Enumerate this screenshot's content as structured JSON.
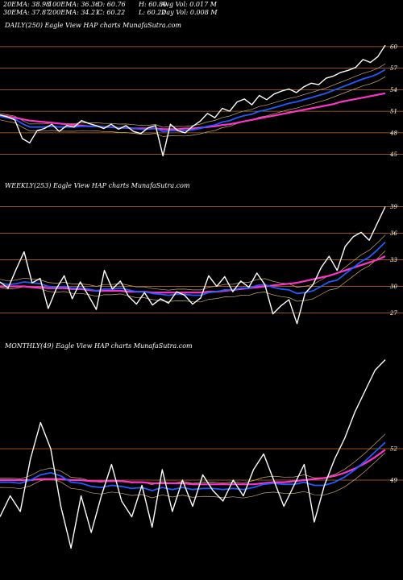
{
  "header": {
    "ema20": "20EMA: 38.98",
    "ema100": "100EMA: 36.36",
    "open": "O: 60.76",
    "high": "H: 60.80",
    "avg_vol": "Avg Vol: 0.017 M",
    "ema30": "30EMA: 37.87",
    "ema200": "200EMA: 34.21",
    "close": "C: 60.22",
    "low": "L: 60.22",
    "day_vol": "Day Vol: 0.008 M"
  },
  "colors": {
    "background": "#000000",
    "gridline": "#c8701e",
    "price": "#ffffff",
    "ema_fast": "#1f5bff",
    "ema_slow": "#ff33cc",
    "ema_mid": "#c8a878"
  },
  "chart_data": [
    {
      "type": "line",
      "title": "DAILY(250) Eagle  View  HAP charts MunafaSutra.com",
      "yticks": [
        60,
        57,
        54,
        51,
        48,
        45
      ],
      "ylim": [
        43.5,
        62
      ],
      "series": [
        {
          "values": [
            50.5,
            50.2,
            49.8,
            47.2,
            46.6,
            48.3,
            48.6,
            49.2,
            48.2,
            49.0,
            48.8,
            49.7,
            49.3,
            49.0,
            48.6,
            49.2,
            48.5,
            49.0,
            48.2,
            47.9,
            48.7,
            49.0,
            44.8,
            49.2,
            48.3,
            48.0,
            48.9,
            49.6,
            50.7,
            50.1,
            51.4,
            51.0,
            52.3,
            52.7,
            51.9,
            53.2,
            52.6,
            53.4,
            53.8,
            54.1,
            53.6,
            54.4,
            54.9,
            54.7,
            55.6,
            55.9,
            56.4,
            56.7,
            57.1,
            58.2,
            57.8,
            58.6,
            60.2
          ]
        },
        {
          "values": [
            50.3,
            50.1,
            49.9,
            49.3,
            48.8,
            48.8,
            48.8,
            48.9,
            48.8,
            48.8,
            48.8,
            48.9,
            48.9,
            48.9,
            48.8,
            48.8,
            48.7,
            48.7,
            48.6,
            48.5,
            48.5,
            48.6,
            48.2,
            48.3,
            48.3,
            48.3,
            48.4,
            48.6,
            48.9,
            49.1,
            49.5,
            49.7,
            50.1,
            50.4,
            50.6,
            51.0,
            51.2,
            51.5,
            51.8,
            52.1,
            52.3,
            52.6,
            52.9,
            53.2,
            53.5,
            53.9,
            54.3,
            54.7,
            55.1,
            55.5,
            55.8,
            56.2,
            56.8
          ]
        },
        {
          "values": [
            50.4,
            50.3,
            50.1,
            49.9,
            49.7,
            49.6,
            49.5,
            49.4,
            49.3,
            49.2,
            49.1,
            49.0,
            48.9,
            48.9,
            48.8,
            48.8,
            48.7,
            48.7,
            48.6,
            48.6,
            48.6,
            48.6,
            48.5,
            48.5,
            48.5,
            48.6,
            48.6,
            48.7,
            48.8,
            48.9,
            49.1,
            49.2,
            49.4,
            49.6,
            49.8,
            50.0,
            50.2,
            50.4,
            50.6,
            50.8,
            51.0,
            51.2,
            51.4,
            51.6,
            51.8,
            52.0,
            52.3,
            52.5,
            52.7,
            52.9,
            53.1,
            53.3,
            53.5
          ]
        }
      ]
    },
    {
      "type": "line",
      "title": "WEEKLY(253) Eagle  View  HAP charts MunafaSutra.com",
      "yticks": [
        39,
        36,
        33,
        30,
        27
      ],
      "ylim": [
        25.5,
        40.5
      ],
      "series": [
        {
          "values": [
            30.5,
            29.8,
            31.9,
            33.9,
            30.4,
            30.9,
            27.5,
            29.7,
            31.2,
            28.6,
            30.5,
            29.0,
            27.4,
            31.8,
            29.7,
            30.6,
            28.9,
            28.0,
            29.3,
            27.9,
            28.6,
            28.1,
            29.4,
            29.0,
            28.0,
            28.7,
            31.2,
            30.0,
            31.1,
            29.4,
            30.6,
            29.9,
            31.5,
            30.2,
            26.9,
            27.8,
            28.5,
            25.8,
            29.2,
            30.2,
            32.1,
            33.4,
            31.8,
            34.5,
            35.6,
            36.1,
            35.2,
            37.1,
            39.0
          ]
        },
        {
          "values": [
            30.4,
            30.2,
            30.3,
            30.5,
            30.4,
            30.3,
            30.0,
            29.9,
            30.0,
            29.8,
            29.8,
            29.7,
            29.5,
            29.7,
            29.7,
            29.8,
            29.6,
            29.4,
            29.4,
            29.2,
            29.1,
            29.0,
            29.1,
            29.1,
            29.0,
            29.0,
            29.3,
            29.4,
            29.6,
            29.6,
            29.8,
            29.8,
            30.1,
            30.2,
            29.9,
            29.7,
            29.6,
            29.2,
            29.3,
            29.5,
            30.0,
            30.5,
            30.7,
            31.4,
            32.1,
            32.8,
            33.3,
            34.1,
            35.0
          ]
        },
        {
          "values": [
            30.0,
            30.0,
            30.0,
            30.0,
            29.9,
            29.9,
            29.8,
            29.8,
            29.8,
            29.7,
            29.7,
            29.6,
            29.5,
            29.5,
            29.5,
            29.5,
            29.4,
            29.4,
            29.4,
            29.3,
            29.3,
            29.3,
            29.3,
            29.3,
            29.3,
            29.3,
            29.4,
            29.4,
            29.5,
            29.6,
            29.7,
            29.8,
            29.9,
            30.0,
            30.1,
            30.2,
            30.3,
            30.4,
            30.6,
            30.8,
            31.0,
            31.2,
            31.5,
            31.8,
            32.1,
            32.4,
            32.7,
            33.0,
            33.4
          ]
        }
      ]
    },
    {
      "type": "line",
      "title": "MONTHLY(49) Eagle  View  HAP charts MunafaSutra.com",
      "yticks": [
        52,
        49
      ],
      "ylim": [
        41,
        61
      ],
      "series": [
        {
          "values": [
            45.5,
            47.5,
            46.0,
            51.0,
            54.5,
            52.0,
            46.5,
            42.5,
            47.5,
            44.0,
            47.5,
            50.5,
            47.0,
            45.5,
            48.5,
            44.5,
            50.0,
            46.0,
            49.0,
            46.5,
            49.5,
            48.0,
            47.0,
            49.0,
            47.5,
            50.0,
            51.5,
            49.0,
            46.5,
            48.5,
            50.5,
            45.0,
            48.5,
            51.0,
            53.0,
            55.5,
            57.5,
            59.5,
            60.5
          ]
        },
        {
          "values": [
            48.8,
            48.8,
            48.7,
            49.0,
            49.5,
            49.7,
            49.4,
            48.8,
            48.7,
            48.4,
            48.3,
            48.5,
            48.4,
            48.2,
            48.3,
            48.0,
            48.3,
            48.1,
            48.3,
            48.1,
            48.2,
            48.2,
            48.1,
            48.2,
            48.1,
            48.3,
            48.6,
            48.7,
            48.6,
            48.6,
            48.8,
            48.5,
            48.5,
            48.8,
            49.3,
            50.0,
            50.8,
            51.7,
            52.6
          ]
        },
        {
          "values": [
            49.0,
            49.0,
            49.0,
            49.0,
            49.1,
            49.1,
            49.1,
            49.0,
            49.0,
            48.9,
            48.9,
            48.9,
            48.9,
            48.8,
            48.8,
            48.7,
            48.7,
            48.7,
            48.7,
            48.6,
            48.6,
            48.6,
            48.6,
            48.6,
            48.6,
            48.6,
            48.7,
            48.8,
            48.8,
            48.9,
            49.0,
            49.1,
            49.2,
            49.4,
            49.7,
            50.1,
            50.6,
            51.2,
            51.9
          ]
        }
      ]
    }
  ]
}
